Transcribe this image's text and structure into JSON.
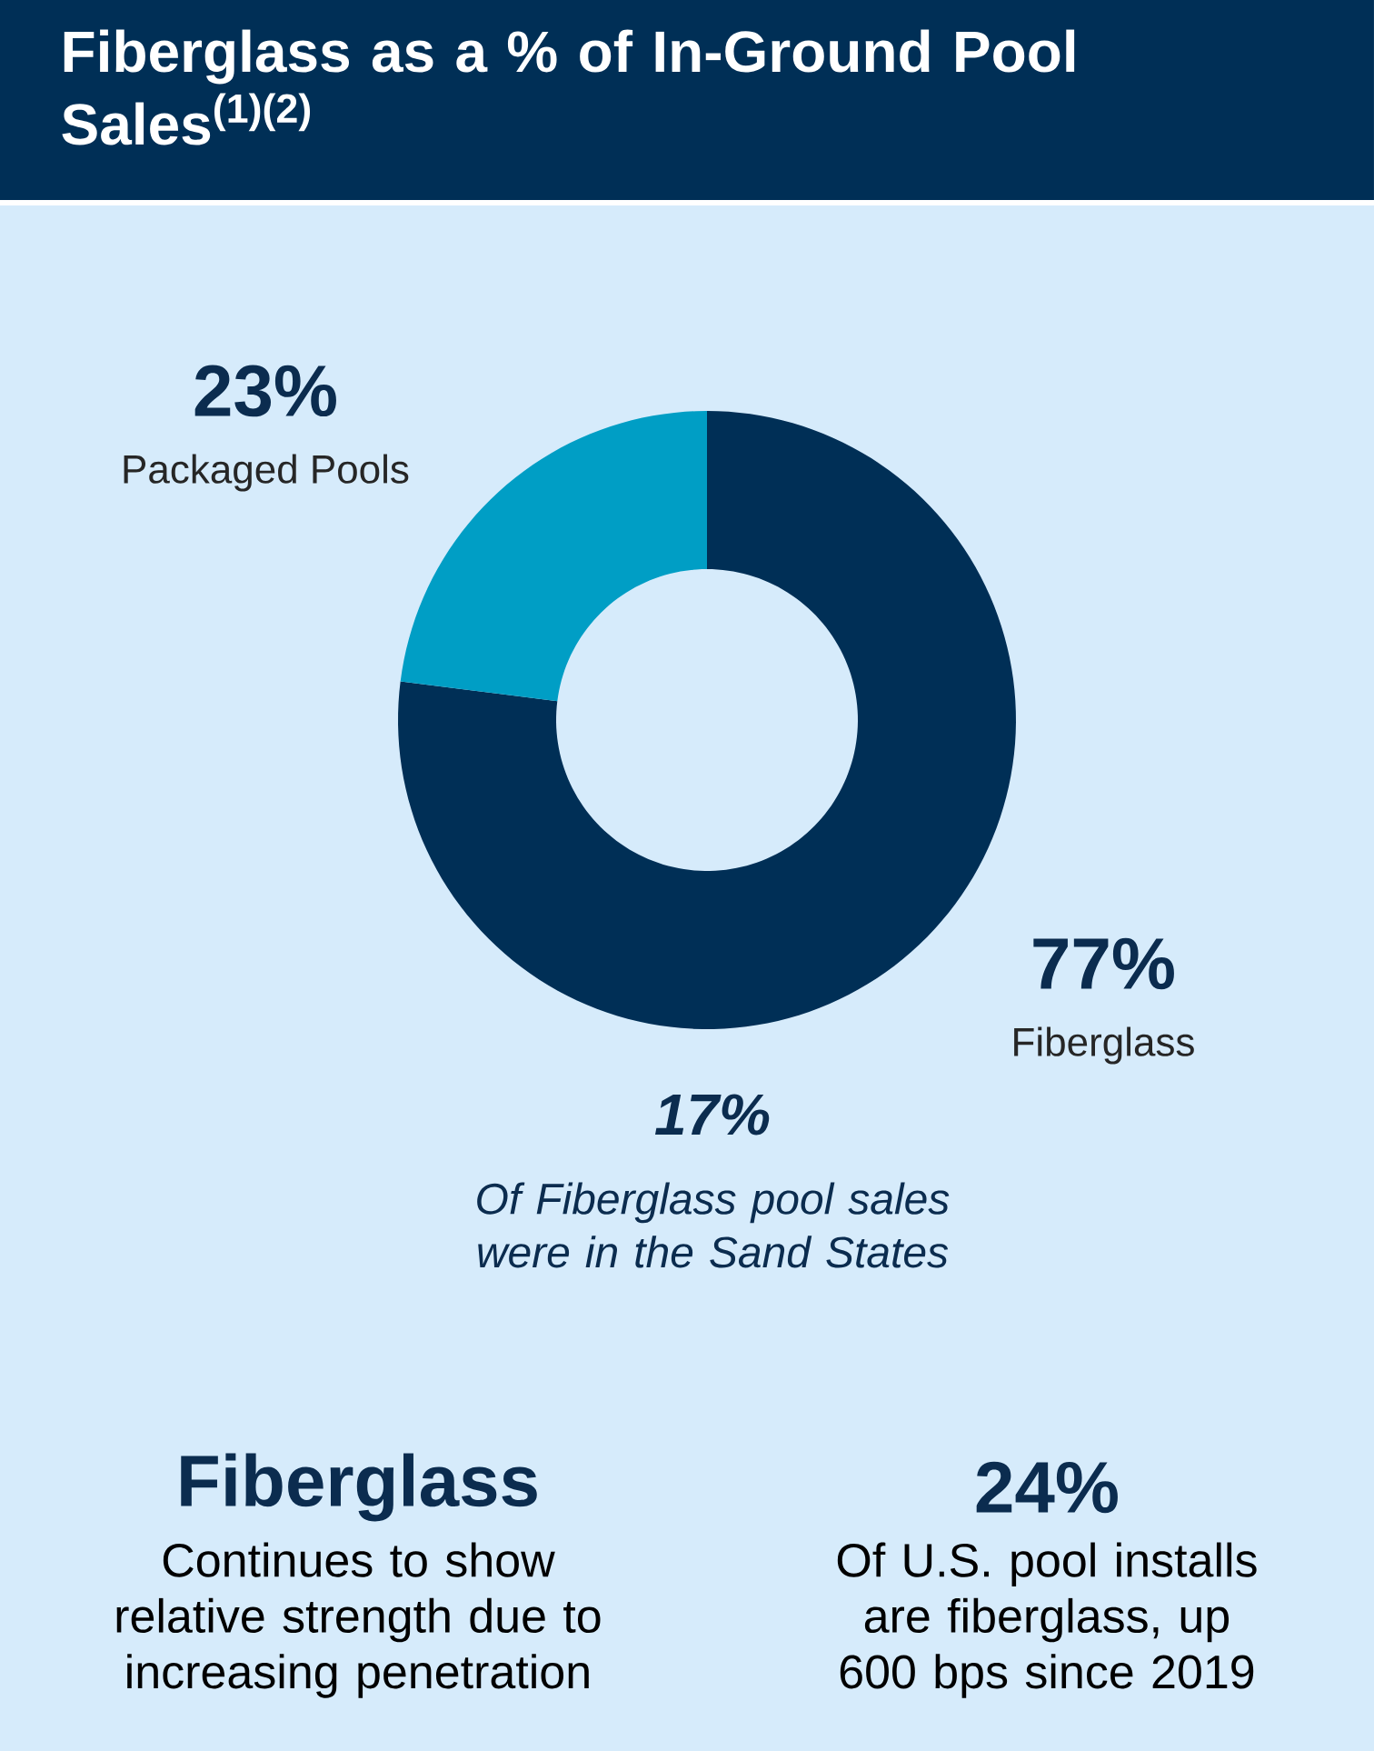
{
  "chart_data": {
    "type": "donut",
    "title": "Fiberglass as a % of In-Ground Pool Sales$^{(1)(2)}$",
    "categories": [
      "Fiberglass",
      "Packaged Pools"
    ],
    "values": [
      77,
      23
    ],
    "colors": [
      "#002f56",
      "#009ec5"
    ],
    "value_labels": [
      "77%",
      "23%"
    ],
    "annotations": [
      "17%",
      "Of Fiberglass pool sales were in the Sand States",
      "Fiberglass",
      "Continues to show relative strength due to increasing penetration",
      "24%",
      "Of U.S. pool installs are fiberglass, up 600 bps since 2019"
    ]
  }
}
